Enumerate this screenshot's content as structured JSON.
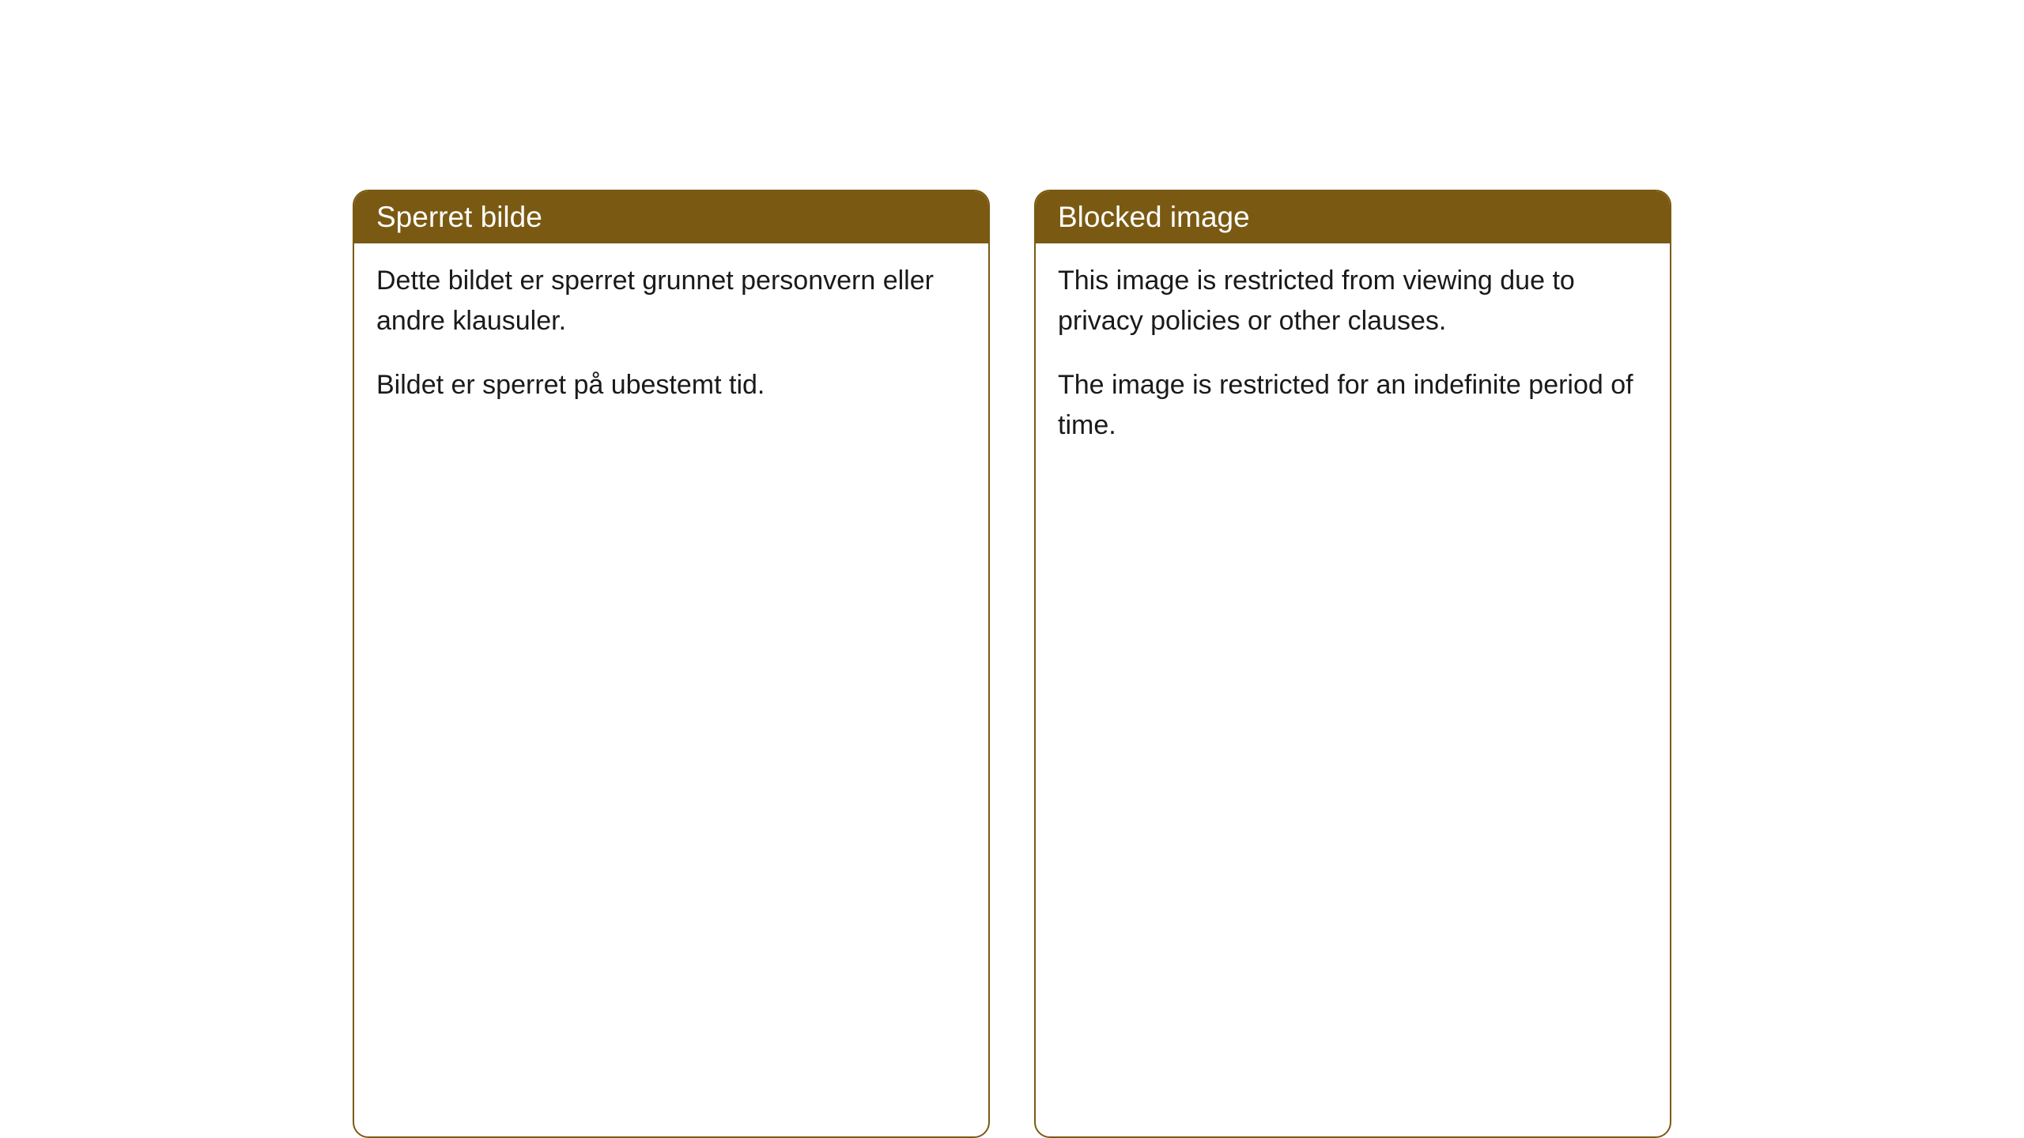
{
  "cards": [
    {
      "title": "Sperret bilde",
      "paragraph1": "Dette bildet er sperret grunnet personvern eller andre klausuler.",
      "paragraph2": "Bildet er sperret på ubestemt tid."
    },
    {
      "title": "Blocked image",
      "paragraph1": "This image is restricted from viewing due to privacy policies or other clauses.",
      "paragraph2": "The image is restricted for an indefinite period of time."
    }
  ],
  "styling": {
    "header_bg_color": "#7a5a13",
    "header_text_color": "#ffffff",
    "border_color": "#7a5a13",
    "body_bg_color": "#ffffff",
    "body_text_color": "#1a1a1a",
    "border_radius": 20,
    "title_fontsize": 37,
    "body_fontsize": 34
  }
}
